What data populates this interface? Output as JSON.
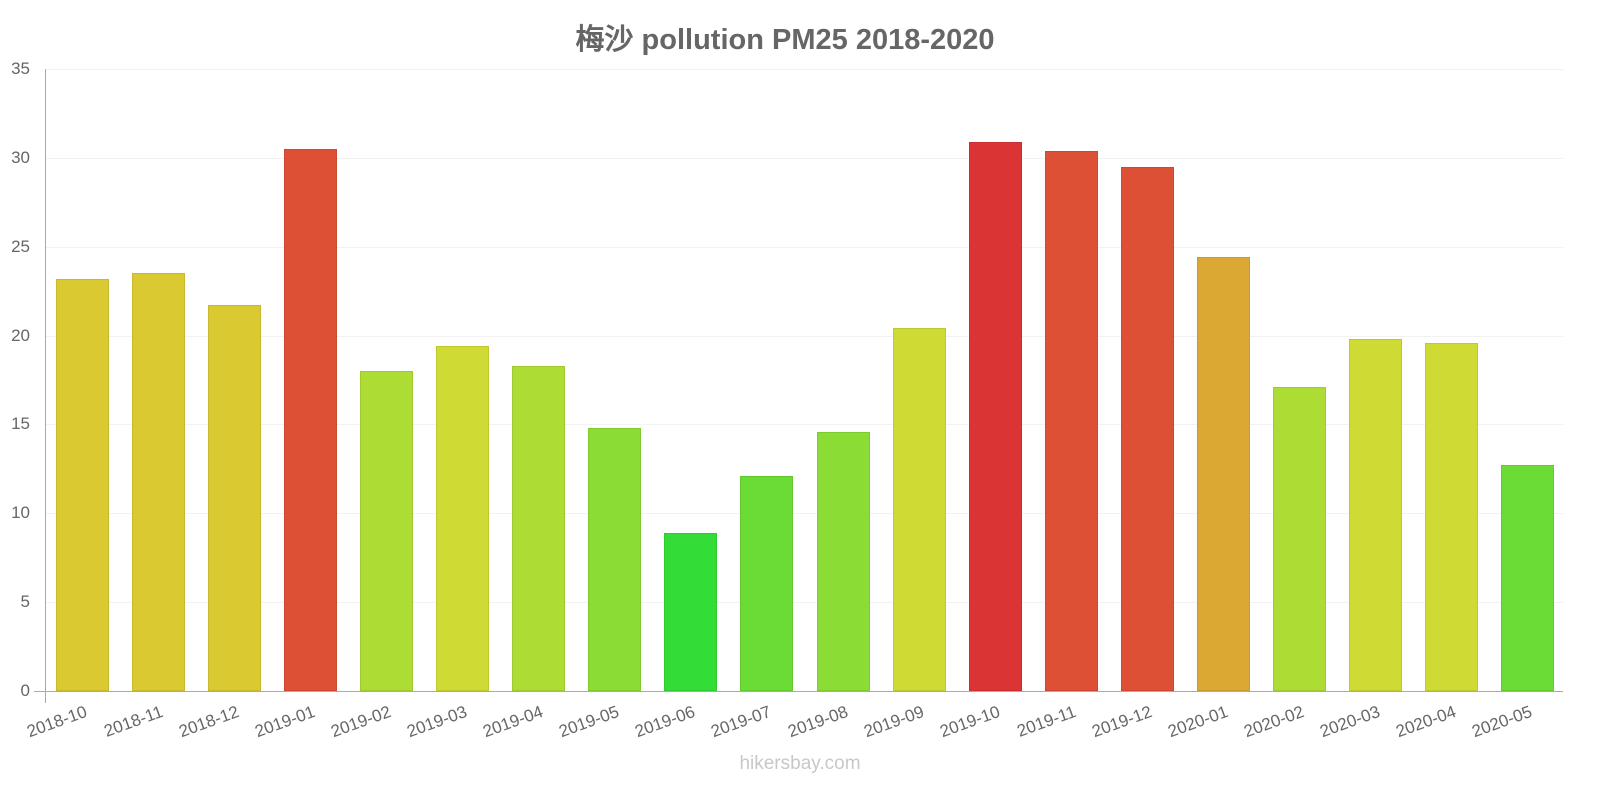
{
  "header": {
    "title": "梅沙 pollution PM25 2018-2020"
  },
  "footer": {
    "watermark": "hikersbay.com"
  },
  "y_ticks": [
    "0",
    "5",
    "10",
    "15",
    "20",
    "25",
    "30",
    "35"
  ],
  "chart_data": {
    "type": "bar",
    "title": "梅沙 pollution PM25 2018-2020",
    "xlabel": "",
    "ylabel": "",
    "ylim": [
      0,
      35
    ],
    "grid": true,
    "legend": "none",
    "categories": [
      "2018-10",
      "2018-11",
      "2018-12",
      "2019-01",
      "2019-02",
      "2019-03",
      "2019-04",
      "2019-05",
      "2019-06",
      "2019-07",
      "2019-08",
      "2019-09",
      "2019-10",
      "2019-11",
      "2019-12",
      "2020-01",
      "2020-02",
      "2020-03",
      "2020-04",
      "2020-05"
    ],
    "values": [
      23.2,
      23.5,
      21.7,
      30.5,
      18.0,
      19.4,
      18.3,
      14.8,
      8.9,
      12.1,
      14.6,
      20.4,
      30.9,
      30.4,
      29.5,
      24.4,
      17.1,
      19.8,
      19.6,
      12.7
    ],
    "colors": [
      "#dbc932",
      "#dbc932",
      "#dbc932",
      "#dd5035",
      "#addc34",
      "#cfdb34",
      "#addc34",
      "#8bdc35",
      "#33dc36",
      "#6bdc35",
      "#8bdc35",
      "#cfdb34",
      "#db3435",
      "#dd5035",
      "#dd5035",
      "#dca834",
      "#addc34",
      "#cfdb34",
      "#cfdb34",
      "#6bdc35"
    ]
  }
}
